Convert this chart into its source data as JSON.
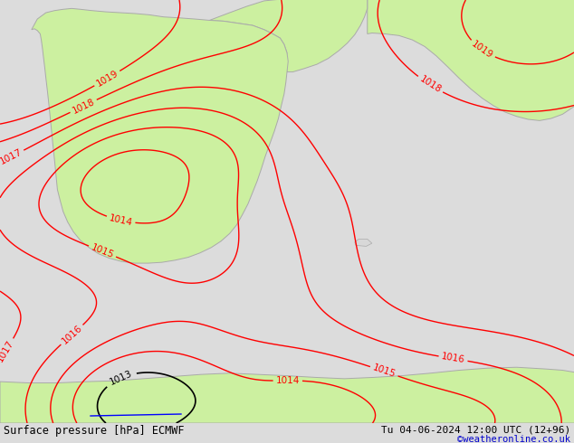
{
  "title_left": "Surface pressure [hPa] ECMWF",
  "title_right": "Tu 04-06-2024 12:00 UTC (12+96)",
  "credit": "©weatheronline.co.uk",
  "bg_gray": "#dcdcdc",
  "land_green": "#ccf0a0",
  "sea_gray": "#d8d8d8",
  "coast_gray": "#aaaaaa",
  "contour_red": "#ff0000",
  "contour_black": "#000000",
  "contour_blue": "#0000ff",
  "credit_color": "#0000cc",
  "bottom_bg": "#c8c8c8",
  "red_levels": [
    1014,
    1015,
    1016,
    1017,
    1018,
    1019
  ],
  "black_levels": [
    1013
  ],
  "all_label_levels": [
    1013,
    1014,
    1015,
    1016,
    1017,
    1018,
    1019
  ]
}
